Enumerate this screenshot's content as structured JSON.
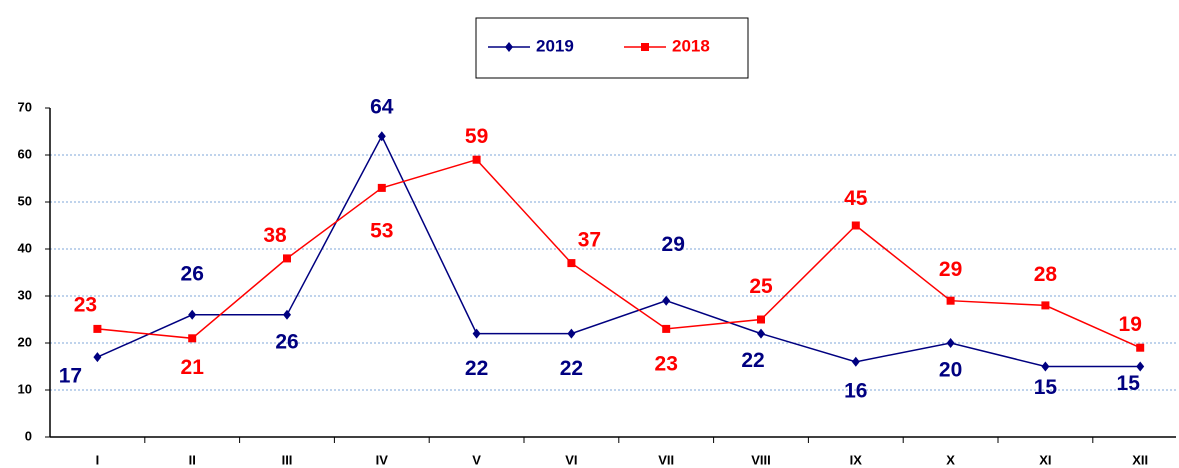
{
  "chart_data": {
    "type": "line",
    "categories": [
      "I",
      "II",
      "III",
      "IV",
      "V",
      "VI",
      "VII",
      "VIII",
      "IX",
      "X",
      "XI",
      "XII"
    ],
    "series": [
      {
        "name": "2019",
        "color": "#000080",
        "marker": "diamond",
        "values": [
          17,
          26,
          26,
          64,
          22,
          22,
          29,
          22,
          16,
          20,
          15,
          15
        ]
      },
      {
        "name": "2018",
        "color": "#ff0000",
        "marker": "square",
        "values": [
          23,
          21,
          38,
          53,
          59,
          37,
          23,
          25,
          45,
          29,
          28,
          19
        ]
      }
    ],
    "ylim": [
      0,
      70
    ],
    "yticks": [
      0,
      10,
      20,
      30,
      40,
      50,
      60,
      70
    ],
    "grid": true,
    "legend": "top"
  }
}
